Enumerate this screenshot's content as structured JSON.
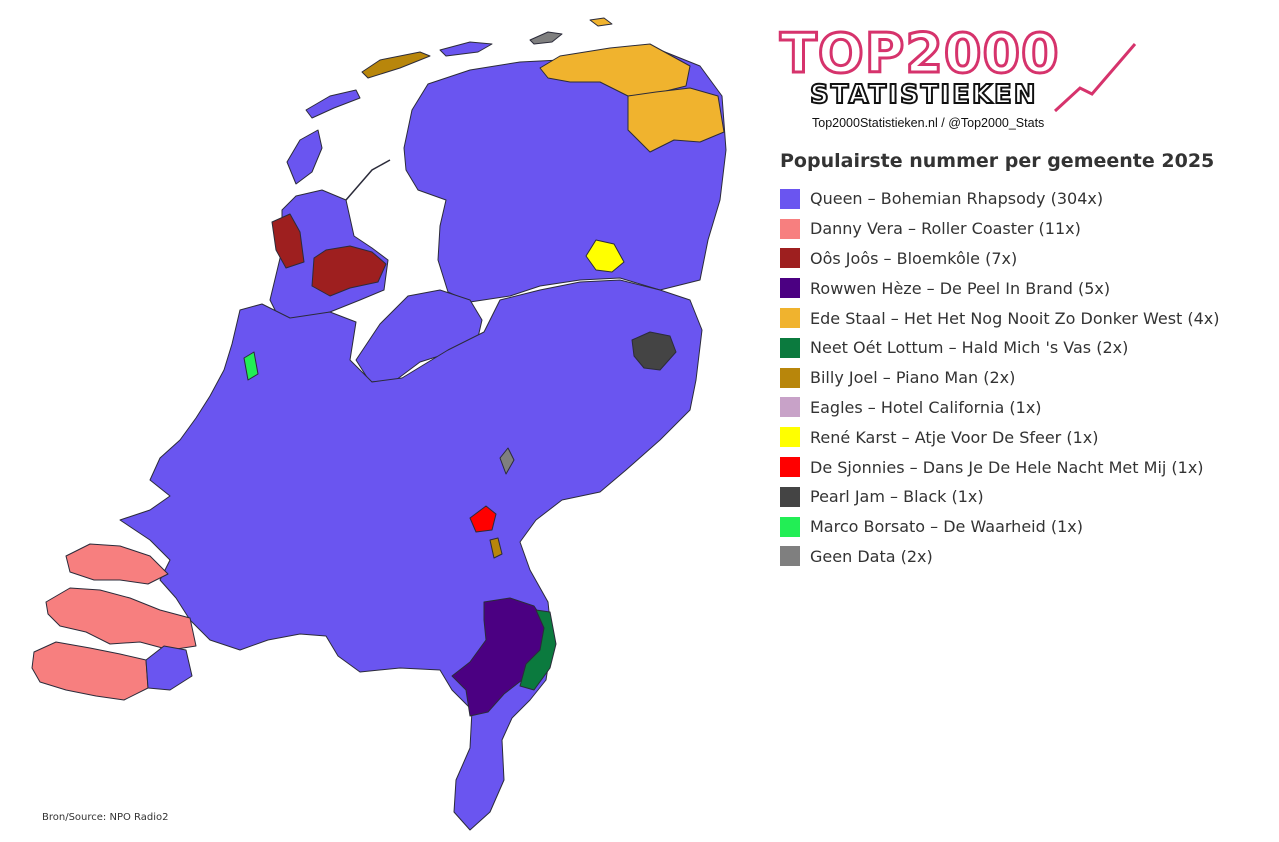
{
  "logo": {
    "top": "TOP2000",
    "sub": "STATISTIEKEN",
    "url": "Top2000Statistieken.nl / @Top2000_Stats"
  },
  "legend": {
    "title": "Populairste nummer per gemeente 2025",
    "items": [
      {
        "label": "Queen – Bohemian Rhapsody (304x)",
        "color": "#6a55f0"
      },
      {
        "label": "Danny Vera – Roller Coaster (11x)",
        "color": "#f77f7f"
      },
      {
        "label": "Oôs Joôs – Bloemkôle (7x)",
        "color": "#9e1f1f"
      },
      {
        "label": "Rowwen Hèze – De Peel In Brand (5x)",
        "color": "#4b0082"
      },
      {
        "label": "Ede Staal – Het Het Nog Nooit Zo Donker West (4x)",
        "color": "#f0b32e"
      },
      {
        "label": "Neet Oét Lottum – Hald Mich 's Vas (2x)",
        "color": "#0b7a3e"
      },
      {
        "label": "Billy Joel – Piano Man (2x)",
        "color": "#b8860b"
      },
      {
        "label": "Eagles – Hotel California (1x)",
        "color": "#c8a2c8"
      },
      {
        "label": "René Karst – Atje Voor De Sfeer (1x)",
        "color": "#ffff00"
      },
      {
        "label": "De Sjonnies – Dans Je De Hele Nacht Met Mij (1x)",
        "color": "#ff0000"
      },
      {
        "label": "Pearl Jam – Black (1x)",
        "color": "#444444"
      },
      {
        "label": "Marco Borsato – De Waarheid (1x)",
        "color": "#22ee55"
      },
      {
        "label": "Geen Data (2x)",
        "color": "#7f7f7f"
      }
    ]
  },
  "source": "Bron/Source: NPO Radio2"
}
